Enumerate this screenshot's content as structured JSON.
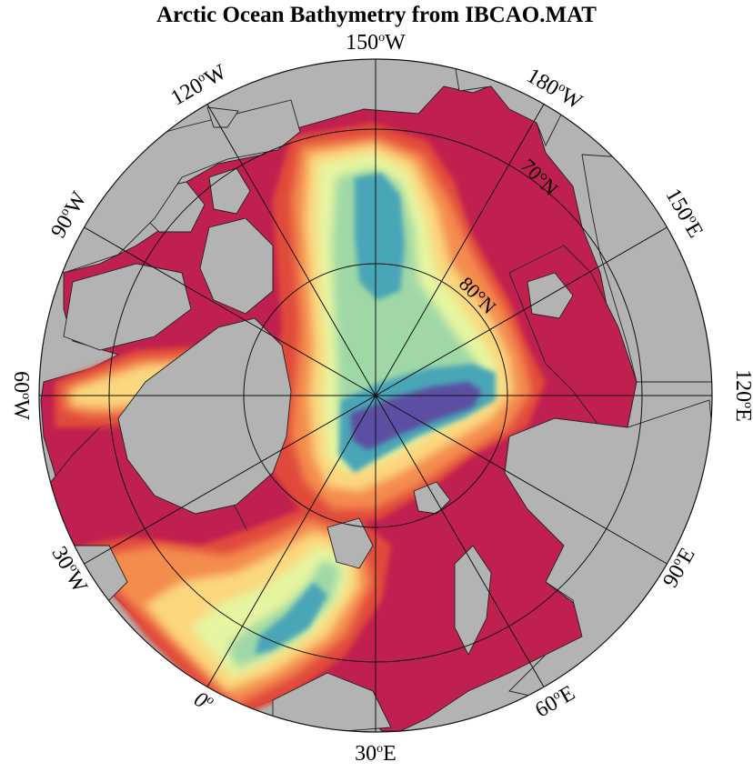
{
  "title": "Arctic Ocean Bathymetry from IBCAO.MAT",
  "colors": {
    "land": "#b3b3b3",
    "shelf": "#c0204f",
    "shallow": "#e04a3a",
    "mid_shallow": "#f48c4e",
    "mid": "#fbd77e",
    "mid_deep": "#e6f5a0",
    "deep": "#9fd8a6",
    "deeper": "#4aa6b7",
    "deepest": "#5b4fa3"
  },
  "longitude_labels": [
    {
      "id": "lon-150w",
      "value": "150",
      "unit": "o",
      "dir": "W"
    },
    {
      "id": "lon-180w",
      "value": "180",
      "unit": "o",
      "dir": "W"
    },
    {
      "id": "lon-150e",
      "value": "150",
      "unit": "o",
      "dir": "E"
    },
    {
      "id": "lon-120e",
      "value": "120",
      "unit": "o",
      "dir": "E"
    },
    {
      "id": "lon-90e",
      "value": "90",
      "unit": "o",
      "dir": "E"
    },
    {
      "id": "lon-60e",
      "value": "60",
      "unit": "o",
      "dir": "E"
    },
    {
      "id": "lon-30e",
      "value": "30",
      "unit": "o",
      "dir": "E"
    },
    {
      "id": "lon-0",
      "value": "0",
      "unit": "o",
      "dir": ""
    },
    {
      "id": "lon-30w",
      "value": "30",
      "unit": "o",
      "dir": "W"
    },
    {
      "id": "lon-60w",
      "value": "60",
      "unit": "o",
      "dir": "W"
    },
    {
      "id": "lon-90w",
      "value": "90",
      "unit": "o",
      "dir": "W"
    },
    {
      "id": "lon-120w",
      "value": "120",
      "unit": "o",
      "dir": "W"
    }
  ],
  "latitude_labels": [
    {
      "id": "lat-70n",
      "text": "70°N"
    },
    {
      "id": "lat-80n",
      "text": "80°N"
    }
  ]
}
